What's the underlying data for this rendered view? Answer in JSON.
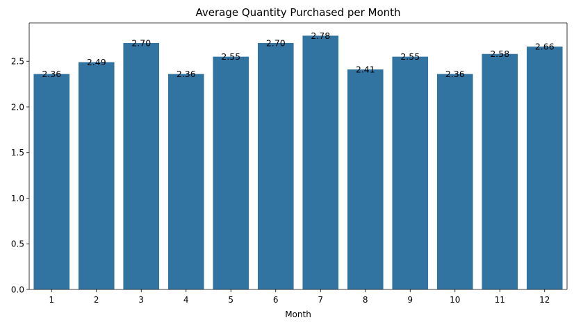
{
  "chart_data": {
    "type": "bar",
    "title": "Average Quantity Purchased per Month",
    "xlabel": "Month",
    "ylabel": "",
    "categories": [
      "1",
      "2",
      "3",
      "4",
      "5",
      "6",
      "7",
      "8",
      "9",
      "10",
      "11",
      "12"
    ],
    "values": [
      2.36,
      2.49,
      2.7,
      2.36,
      2.55,
      2.7,
      2.78,
      2.41,
      2.55,
      2.36,
      2.58,
      2.66
    ],
    "value_labels": [
      "2.36",
      "2.49",
      "2.70",
      "2.36",
      "2.55",
      "2.70",
      "2.78",
      "2.41",
      "2.55",
      "2.36",
      "2.58",
      "2.66"
    ],
    "ylim": [
      0,
      2.92
    ],
    "yticks": [
      0.0,
      0.5,
      1.0,
      1.5,
      2.0,
      2.5
    ],
    "ytick_labels": [
      "0.0",
      "0.5",
      "1.0",
      "1.5",
      "2.0",
      "2.5"
    ],
    "grid": false,
    "legend": "none",
    "bar_color": "#3274a1"
  }
}
